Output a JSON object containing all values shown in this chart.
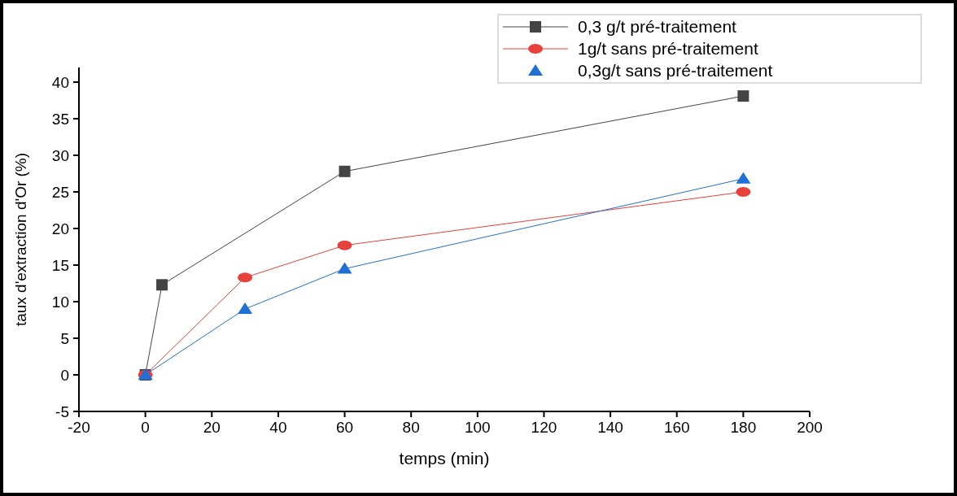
{
  "chart_data": {
    "type": "line",
    "xlabel": "temps (min)",
    "ylabel": "taux d'extraction d'Or (%)",
    "xlim": [
      -20,
      200
    ],
    "xticks": [
      -20,
      0,
      20,
      40,
      60,
      80,
      100,
      120,
      140,
      160,
      180,
      200
    ],
    "ylim": [
      -5,
      42
    ],
    "yticks": [
      -5,
      0,
      5,
      10,
      15,
      20,
      25,
      30,
      35,
      40
    ],
    "legend": "top right",
    "grid": false,
    "series": [
      {
        "name": "0,3 g/t pré-traitement",
        "color": "#444444",
        "marker": "square",
        "x": [
          0,
          5,
          60,
          180
        ],
        "values": [
          0,
          12.3,
          27.8,
          38.1
        ]
      },
      {
        "name": "1g/t sans pré-traitement",
        "color": "#e8403a",
        "marker": "circle",
        "x": [
          0,
          30,
          60,
          180
        ],
        "values": [
          0,
          13.3,
          17.7,
          25.0
        ]
      },
      {
        "name": "0,3g/t sans pré-traitement",
        "color": "#1f6fd6",
        "marker": "triangle",
        "x": [
          0,
          30,
          60,
          180
        ],
        "values": [
          0,
          9.0,
          14.5,
          26.8
        ]
      }
    ]
  }
}
